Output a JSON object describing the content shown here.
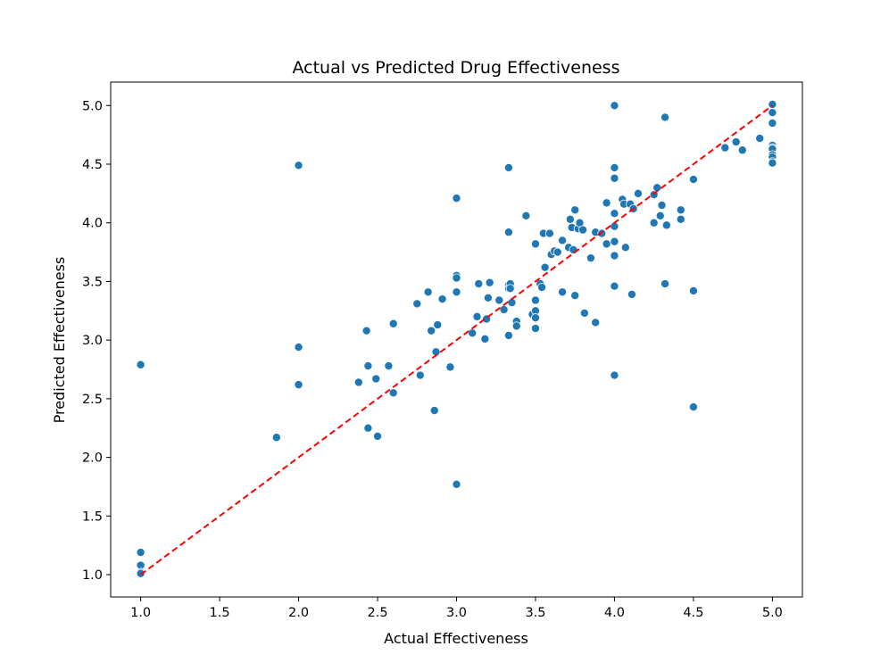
{
  "chart_data": {
    "type": "scatter",
    "title": "Actual vs Predicted Drug Effectiveness",
    "xlabel": "Actual Effectiveness",
    "ylabel": "Predicted Effectiveness",
    "xlim": [
      0.81,
      5.19
    ],
    "ylim": [
      0.81,
      5.2
    ],
    "xticks": [
      1.0,
      1.5,
      2.0,
      2.5,
      3.0,
      3.5,
      4.0,
      4.5,
      5.0
    ],
    "xtick_labels": [
      "1.0",
      "1.5",
      "2.0",
      "2.5",
      "3.0",
      "3.5",
      "4.0",
      "4.5",
      "5.0"
    ],
    "yticks": [
      1.0,
      1.5,
      2.0,
      2.5,
      3.0,
      3.5,
      4.0,
      4.5,
      5.0
    ],
    "ytick_labels": [
      "1.0",
      "1.5",
      "2.0",
      "2.5",
      "3.0",
      "3.5",
      "4.0",
      "4.5",
      "5.0"
    ],
    "grid": false,
    "point_color": "#1f77b4",
    "reference_line": {
      "x": [
        1.0,
        5.0
      ],
      "y": [
        1.0,
        5.0
      ],
      "color": "#ff0000",
      "style": "dashed"
    },
    "points": [
      [
        1.0,
        2.79
      ],
      [
        1.0,
        1.19
      ],
      [
        1.0,
        1.08
      ],
      [
        1.0,
        1.02
      ],
      [
        1.0,
        1.01
      ],
      [
        1.86,
        2.17
      ],
      [
        2.0,
        4.49
      ],
      [
        2.0,
        2.94
      ],
      [
        2.0,
        2.62
      ],
      [
        2.38,
        2.64
      ],
      [
        2.43,
        3.08
      ],
      [
        2.44,
        2.78
      ],
      [
        2.44,
        2.25
      ],
      [
        2.49,
        2.67
      ],
      [
        2.5,
        2.18
      ],
      [
        2.57,
        2.78
      ],
      [
        2.6,
        3.14
      ],
      [
        2.6,
        2.55
      ],
      [
        2.75,
        3.31
      ],
      [
        2.77,
        2.7
      ],
      [
        2.82,
        3.41
      ],
      [
        2.84,
        3.08
      ],
      [
        2.86,
        2.4
      ],
      [
        2.87,
        2.9
      ],
      [
        2.88,
        3.13
      ],
      [
        2.91,
        3.35
      ],
      [
        2.96,
        2.77
      ],
      [
        3.0,
        4.21
      ],
      [
        3.0,
        3.55
      ],
      [
        3.0,
        3.53
      ],
      [
        3.0,
        3.41
      ],
      [
        3.0,
        1.77
      ],
      [
        3.1,
        3.06
      ],
      [
        3.13,
        3.2
      ],
      [
        3.14,
        3.48
      ],
      [
        3.18,
        3.01
      ],
      [
        3.19,
        3.18
      ],
      [
        3.2,
        3.36
      ],
      [
        3.21,
        3.49
      ],
      [
        3.27,
        3.34
      ],
      [
        3.3,
        3.26
      ],
      [
        3.33,
        4.47
      ],
      [
        3.33,
        3.92
      ],
      [
        3.33,
        3.47
      ],
      [
        3.33,
        3.44
      ],
      [
        3.34,
        3.48
      ],
      [
        3.34,
        3.44
      ],
      [
        3.35,
        3.32
      ],
      [
        3.33,
        3.04
      ],
      [
        3.38,
        3.16
      ],
      [
        3.38,
        3.12
      ],
      [
        3.44,
        4.06
      ],
      [
        3.48,
        3.22
      ],
      [
        3.5,
        3.82
      ],
      [
        3.5,
        3.34
      ],
      [
        3.5,
        3.25
      ],
      [
        3.5,
        3.19
      ],
      [
        3.5,
        3.1
      ],
      [
        3.53,
        3.48
      ],
      [
        3.54,
        3.45
      ],
      [
        3.55,
        3.91
      ],
      [
        3.56,
        3.62
      ],
      [
        3.59,
        3.91
      ],
      [
        3.6,
        3.73
      ],
      [
        3.62,
        3.76
      ],
      [
        3.64,
        3.75
      ],
      [
        3.67,
        3.85
      ],
      [
        3.67,
        3.41
      ],
      [
        3.71,
        3.79
      ],
      [
        3.72,
        4.03
      ],
      [
        3.73,
        3.96
      ],
      [
        3.74,
        3.77
      ],
      [
        3.75,
        4.11
      ],
      [
        3.75,
        3.38
      ],
      [
        3.77,
        3.95
      ],
      [
        3.78,
        4.0
      ],
      [
        3.8,
        3.94
      ],
      [
        3.81,
        3.23
      ],
      [
        3.85,
        3.7
      ],
      [
        3.88,
        3.92
      ],
      [
        3.88,
        3.15
      ],
      [
        3.92,
        3.91
      ],
      [
        3.95,
        4.17
      ],
      [
        3.95,
        3.82
      ],
      [
        4.0,
        5.0
      ],
      [
        4.0,
        4.47
      ],
      [
        4.0,
        4.38
      ],
      [
        4.0,
        4.08
      ],
      [
        4.0,
        3.97
      ],
      [
        4.0,
        3.84
      ],
      [
        4.0,
        3.72
      ],
      [
        4.0,
        3.46
      ],
      [
        4.0,
        2.7
      ],
      [
        4.05,
        4.2
      ],
      [
        4.06,
        4.16
      ],
      [
        4.07,
        3.79
      ],
      [
        4.1,
        4.16
      ],
      [
        4.11,
        3.39
      ],
      [
        4.12,
        4.12
      ],
      [
        4.15,
        4.25
      ],
      [
        4.25,
        4.24
      ],
      [
        4.25,
        4.0
      ],
      [
        4.27,
        4.3
      ],
      [
        4.29,
        4.06
      ],
      [
        4.3,
        4.15
      ],
      [
        4.32,
        4.9
      ],
      [
        4.32,
        3.48
      ],
      [
        4.33,
        3.98
      ],
      [
        4.42,
        4.11
      ],
      [
        4.42,
        4.03
      ],
      [
        4.5,
        4.37
      ],
      [
        4.5,
        3.42
      ],
      [
        4.5,
        2.43
      ],
      [
        4.7,
        4.64
      ],
      [
        4.77,
        4.69
      ],
      [
        4.81,
        4.62
      ],
      [
        4.92,
        4.72
      ],
      [
        5.0,
        5.01
      ],
      [
        5.0,
        4.94
      ],
      [
        5.0,
        4.85
      ],
      [
        5.0,
        4.66
      ],
      [
        5.0,
        4.64
      ],
      [
        5.0,
        4.63
      ],
      [
        5.0,
        4.58
      ],
      [
        5.0,
        4.56
      ],
      [
        5.0,
        4.52
      ],
      [
        5.0,
        4.51
      ]
    ]
  }
}
